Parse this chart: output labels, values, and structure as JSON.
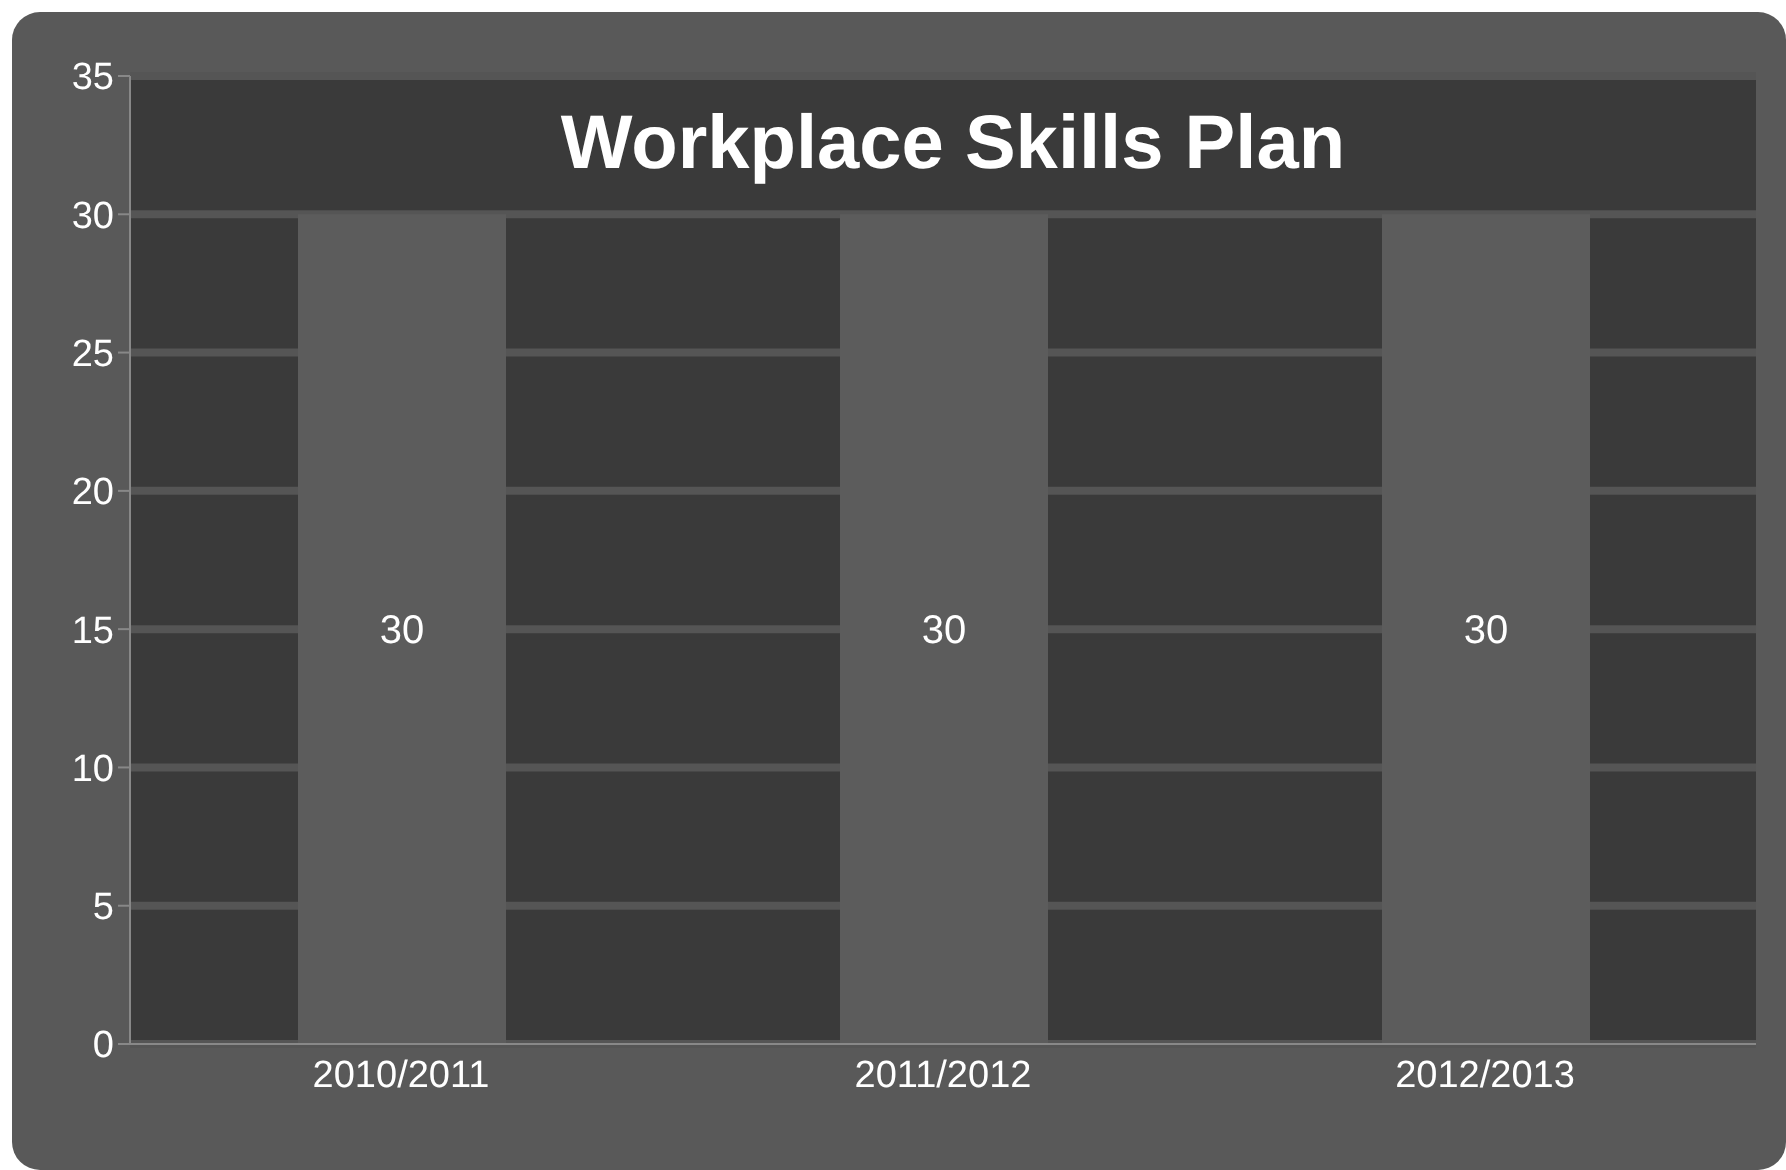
{
  "chart_data": {
    "type": "bar",
    "title": "Workplace Skills Plan",
    "categories": [
      "2010/2011",
      "2011/2012",
      "2012/2013"
    ],
    "values": [
      30,
      30,
      30
    ],
    "color": "#5c5c5c",
    "ylim": [
      0,
      35
    ],
    "yticks": [
      0,
      5,
      10,
      15,
      20,
      25,
      30,
      35
    ],
    "grid": "y",
    "data_labels": true
  }
}
